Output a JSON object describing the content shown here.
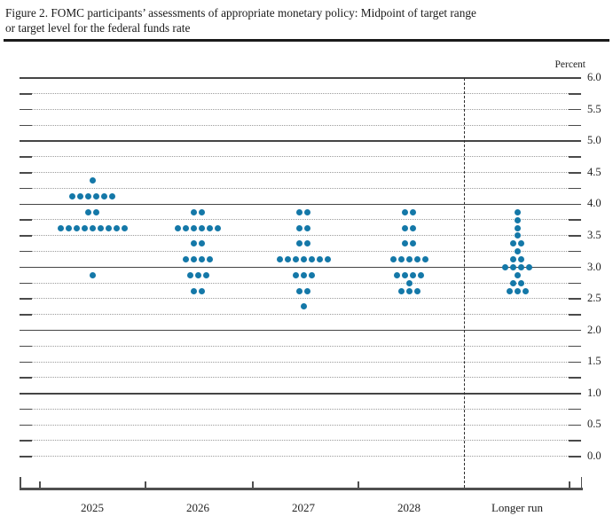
{
  "figure": {
    "title_line1": "Figure 2. FOMC participants’ assessments of appropriate monetary policy: Midpoint of target range",
    "title_line2": "or target level for the federal funds rate"
  },
  "chart_data": {
    "type": "scatter",
    "subtype": "fomc-dot-plot",
    "title": "FOMC participants’ assessments of appropriate monetary policy: Midpoint of target range or target level for the federal funds rate",
    "percent_label": "Percent",
    "dot_color": "#1478a8",
    "y_axis": {
      "unit": "Percent",
      "min": 0.0,
      "max": 6.0,
      "gridline_step": 0.25,
      "label_step": 0.5,
      "tick_labels": [
        "6.0",
        "5.5",
        "5.0",
        "4.5",
        "4.0",
        "3.5",
        "3.0",
        "2.5",
        "2.0",
        "1.5",
        "1.0",
        "0.5",
        "0.0"
      ],
      "solid_lines_at": [
        6.0,
        5.0,
        4.0,
        3.0,
        2.0,
        1.0
      ]
    },
    "categories": [
      "2025",
      "2026",
      "2027",
      "2028",
      "Longer run"
    ],
    "series": [
      {
        "category": "2025",
        "dots": [
          {
            "rate": 4.375,
            "count": 1
          },
          {
            "rate": 4.125,
            "count": 6
          },
          {
            "rate": 3.875,
            "count": 2
          },
          {
            "rate": 3.625,
            "count": 9
          },
          {
            "rate": 2.875,
            "count": 1
          }
        ]
      },
      {
        "category": "2026",
        "dots": [
          {
            "rate": 3.875,
            "count": 2
          },
          {
            "rate": 3.625,
            "count": 6
          },
          {
            "rate": 3.375,
            "count": 2
          },
          {
            "rate": 3.125,
            "count": 4
          },
          {
            "rate": 2.875,
            "count": 3
          },
          {
            "rate": 2.625,
            "count": 2
          }
        ]
      },
      {
        "category": "2027",
        "dots": [
          {
            "rate": 3.875,
            "count": 2
          },
          {
            "rate": 3.625,
            "count": 2
          },
          {
            "rate": 3.375,
            "count": 2
          },
          {
            "rate": 3.125,
            "count": 7
          },
          {
            "rate": 2.875,
            "count": 3
          },
          {
            "rate": 2.625,
            "count": 2
          },
          {
            "rate": 2.375,
            "count": 1
          }
        ]
      },
      {
        "category": "2028",
        "dots": [
          {
            "rate": 3.875,
            "count": 2
          },
          {
            "rate": 3.625,
            "count": 2
          },
          {
            "rate": 3.375,
            "count": 2
          },
          {
            "rate": 3.125,
            "count": 5
          },
          {
            "rate": 2.875,
            "count": 4
          },
          {
            "rate": 2.75,
            "count": 1
          },
          {
            "rate": 2.625,
            "count": 3
          }
        ]
      },
      {
        "category": "Longer run",
        "dots": [
          {
            "rate": 3.875,
            "count": 1
          },
          {
            "rate": 3.75,
            "count": 1
          },
          {
            "rate": 3.625,
            "count": 1
          },
          {
            "rate": 3.5,
            "count": 1
          },
          {
            "rate": 3.375,
            "count": 2
          },
          {
            "rate": 3.25,
            "count": 1
          },
          {
            "rate": 3.125,
            "count": 2
          },
          {
            "rate": 3.0,
            "count": 4
          },
          {
            "rate": 2.875,
            "count": 1
          },
          {
            "rate": 2.75,
            "count": 2
          },
          {
            "rate": 2.625,
            "count": 3
          }
        ]
      }
    ]
  }
}
